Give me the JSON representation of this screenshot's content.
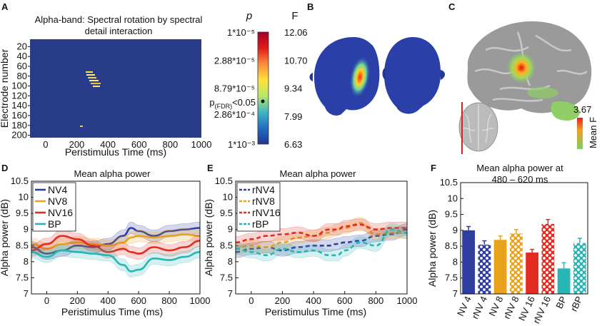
{
  "panels": {
    "A": "A",
    "B": "B",
    "C": "C",
    "D": "D",
    "E": "E",
    "F": "F"
  },
  "panelA": {
    "title_line1": "Alpha-band: Spectral rotation by spectral",
    "title_line2": "detail interaction",
    "ylabel": "Electrode number",
    "xlabel": "Peristimulus Time (ms)",
    "yticks": [
      "20",
      "40",
      "60",
      "80",
      "100",
      "120",
      "140",
      "160",
      "180",
      "200"
    ],
    "xticks": [
      "0",
      "200",
      "400",
      "600",
      "800",
      "1000"
    ],
    "background_color": "#283c8a",
    "cluster_color": "#f5e84a"
  },
  "colorbar": {
    "p_header": "p",
    "f_header": "F",
    "p_labels": [
      "1*10⁻⁵",
      "2.88*10⁻⁵",
      "8.79*10⁻⁵",
      "2.86*10⁻⁴",
      "1*10⁻³"
    ],
    "p_fdr_main": "p",
    "p_fdr_sub": "(FDR)",
    "p_fdr_rest": "<0.05",
    "f_labels": [
      "12.06",
      "10.70",
      "9.34",
      "7.99",
      "6.63"
    ],
    "colors": [
      "#a50026",
      "#e31a1c",
      "#fd8d3c",
      "#fee33a",
      "#b8e66b",
      "#41b6c4",
      "#1e6fc2",
      "#253494"
    ]
  },
  "panelB": {
    "head_color": "#2a3fa8",
    "hot_color": "#ff3d1a"
  },
  "panelC": {
    "scale_value": "3.67",
    "scale_label": "Mean F",
    "brain_color": "#9a9a9a",
    "line_color": "#e02020"
  },
  "chart_data": [
    {
      "type": "line",
      "panel": "D",
      "title": "Mean alpha power",
      "xlabel": "Peristimulus Time (ms)",
      "ylabel": "Alpha power (dB)",
      "xlim": [
        -100,
        1000
      ],
      "ylim": [
        7,
        10.5
      ],
      "xticks": [
        "0",
        "200",
        "400",
        "600",
        "800",
        "1000"
      ],
      "yticks": [
        "7",
        "7.5",
        "8",
        "8.5",
        "9",
        "9.5",
        "10",
        "10.5"
      ],
      "x": [
        -100,
        0,
        100,
        200,
        300,
        400,
        500,
        550,
        600,
        700,
        800,
        900,
        1000
      ],
      "legend": [
        "NV4",
        "NV8",
        "NV16",
        "BP"
      ],
      "series": [
        {
          "name": "NV4",
          "color": "#2e3d9e",
          "dashed": false,
          "values": [
            8.45,
            8.25,
            8.35,
            8.5,
            8.45,
            8.55,
            8.8,
            9.05,
            8.95,
            8.8,
            8.95,
            9.0,
            9.05
          ]
        },
        {
          "name": "NV8",
          "color": "#e8a21c",
          "dashed": false,
          "values": [
            8.55,
            8.4,
            8.55,
            8.6,
            8.55,
            8.5,
            8.6,
            8.75,
            8.8,
            8.75,
            8.8,
            8.85,
            8.8
          ]
        },
        {
          "name": "NV16",
          "color": "#e32b22",
          "dashed": false,
          "values": [
            8.35,
            8.55,
            8.8,
            8.7,
            8.5,
            8.3,
            8.4,
            8.3,
            8.25,
            8.45,
            8.35,
            8.45,
            8.65
          ]
        },
        {
          "name": "BP",
          "color": "#27b6b3",
          "dashed": false,
          "values": [
            8.3,
            8.15,
            8.35,
            8.3,
            8.25,
            8.2,
            7.9,
            7.7,
            7.75,
            8.1,
            8.05,
            8.15,
            8.3
          ]
        }
      ]
    },
    {
      "type": "line",
      "panel": "E",
      "title": "Mean alpha power",
      "xlabel": "Peristimulus Time (ms)",
      "ylabel": "Alpha power (dB)",
      "xlim": [
        -100,
        1000
      ],
      "ylim": [
        7,
        10.5
      ],
      "xticks": [
        "0",
        "200",
        "400",
        "600",
        "800",
        "1000"
      ],
      "yticks": [
        "7",
        "7.5",
        "8",
        "8.5",
        "9",
        "9.5",
        "10",
        "10.5"
      ],
      "x": [
        -100,
        0,
        100,
        200,
        300,
        400,
        500,
        550,
        600,
        700,
        800,
        900,
        1000
      ],
      "legend": [
        "rNV4",
        "rNV8",
        "rNV16",
        "rBP"
      ],
      "series": [
        {
          "name": "rNV4",
          "color": "#2e3d9e",
          "dashed": true,
          "values": [
            8.3,
            8.4,
            8.45,
            8.35,
            8.45,
            8.5,
            8.5,
            8.55,
            8.6,
            8.65,
            8.8,
            8.85,
            9.0
          ]
        },
        {
          "name": "rNV8",
          "color": "#e8a21c",
          "dashed": true,
          "values": [
            8.4,
            8.5,
            8.45,
            8.6,
            8.75,
            8.8,
            8.9,
            9.0,
            9.05,
            9.2,
            8.85,
            8.9,
            8.9
          ]
        },
        {
          "name": "rNV16",
          "color": "#e32b22",
          "dashed": true,
          "values": [
            8.6,
            8.7,
            8.8,
            8.85,
            8.9,
            8.8,
            9.0,
            9.0,
            9.1,
            9.15,
            9.0,
            9.05,
            9.05
          ]
        },
        {
          "name": "rBP",
          "color": "#27b6b3",
          "dashed": true,
          "values": [
            8.4,
            8.3,
            8.2,
            8.4,
            8.3,
            8.35,
            8.2,
            8.2,
            8.35,
            8.6,
            8.5,
            9.0,
            8.9
          ]
        }
      ]
    },
    {
      "type": "bar",
      "panel": "F",
      "title_line1": "Mean alpha power at",
      "title_line2": "480 – 620 ms",
      "ylabel": "Alpha power (dB)",
      "ylim": [
        7,
        10.5
      ],
      "yticks": [
        "7",
        "7.5",
        "8",
        "8.5",
        "9",
        "9.5",
        "10",
        "10.5"
      ],
      "categories": [
        "NV 4",
        "rNV 4",
        "NV 8",
        "rNV 8",
        "NV 16",
        "rNV 16",
        "BP",
        "rBP"
      ],
      "values": [
        9.0,
        8.55,
        8.7,
        8.9,
        8.3,
        9.2,
        7.8,
        8.6
      ],
      "errors": [
        0.12,
        0.12,
        0.12,
        0.12,
        0.1,
        0.14,
        0.18,
        0.15
      ],
      "colors": [
        "#2e3d9e",
        "#2e3d9e",
        "#e8a21c",
        "#e8a21c",
        "#e32b22",
        "#e32b22",
        "#27b6b3",
        "#27b6b3"
      ],
      "patterned": [
        false,
        true,
        false,
        true,
        false,
        true,
        false,
        true
      ]
    }
  ]
}
